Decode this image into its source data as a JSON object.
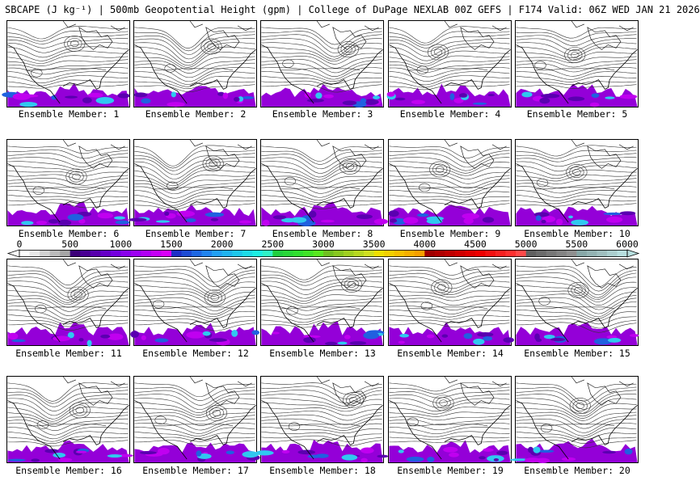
{
  "header": {
    "title": "SBCAPE (J kg⁻¹) | 500mb Geopotential Height (gpm) | College of DuPage NEXLAB 00Z GEFS | F174 Valid: 06Z WED JAN 21 2026"
  },
  "members": [
    {
      "label": "Ensemble Member: 1"
    },
    {
      "label": "Ensemble Member: 2"
    },
    {
      "label": "Ensemble Member: 3"
    },
    {
      "label": "Ensemble Member: 4"
    },
    {
      "label": "Ensemble Member: 5"
    },
    {
      "label": "Ensemble Member: 6"
    },
    {
      "label": "Ensemble Member: 7"
    },
    {
      "label": "Ensemble Member: 8"
    },
    {
      "label": "Ensemble Member: 9"
    },
    {
      "label": "Ensemble Member: 10"
    },
    {
      "label": "Ensemble Member: 11"
    },
    {
      "label": "Ensemble Member: 12"
    },
    {
      "label": "Ensemble Member: 13"
    },
    {
      "label": "Ensemble Member: 14"
    },
    {
      "label": "Ensemble Member: 15"
    },
    {
      "label": "Ensemble Member: 16"
    },
    {
      "label": "Ensemble Member: 17"
    },
    {
      "label": "Ensemble Member: 18"
    },
    {
      "label": "Ensemble Member: 19"
    },
    {
      "label": "Ensemble Member: 20"
    }
  ],
  "colorbar": {
    "ticks": [
      "0",
      "500",
      "1000",
      "1500",
      "2000",
      "2500",
      "3000",
      "3500",
      "4000",
      "4500",
      "5000",
      "5500",
      "6000"
    ],
    "min": 0,
    "max": 6000,
    "step": 100,
    "colors": [
      "#ffffff",
      "#e8e8e8",
      "#d2d2d2",
      "#bcbcbc",
      "#a6a6a6",
      "#3c007a",
      "#4a0094",
      "#5800ae",
      "#6600c8",
      "#7400e0",
      "#8a00ee",
      "#9e00f4",
      "#b200f6",
      "#c600f8",
      "#da00fa",
      "#1e30c8",
      "#1e4cd6",
      "#1e68e4",
      "#2084f0",
      "#22a0f4",
      "#20b4f0",
      "#1ec8ec",
      "#1edce8",
      "#1ef0e4",
      "#30f4c8",
      "#20d040",
      "#28d838",
      "#30e030",
      "#40e428",
      "#58e820",
      "#70c020",
      "#88c820",
      "#a0d020",
      "#b8d820",
      "#d0e020",
      "#f0e000",
      "#f4d000",
      "#f8c000",
      "#f8b000",
      "#f8a000",
      "#a00000",
      "#b00000",
      "#c00000",
      "#d00000",
      "#e00000",
      "#f00000",
      "#f41010",
      "#f82020",
      "#ff3030",
      "#ff4a4a",
      "#606060",
      "#6c6c6c",
      "#787878",
      "#848484",
      "#909090",
      "#88a8a8",
      "#94b4b4",
      "#a0c0c0",
      "#acd0d0",
      "#b8e0e0"
    ]
  }
}
